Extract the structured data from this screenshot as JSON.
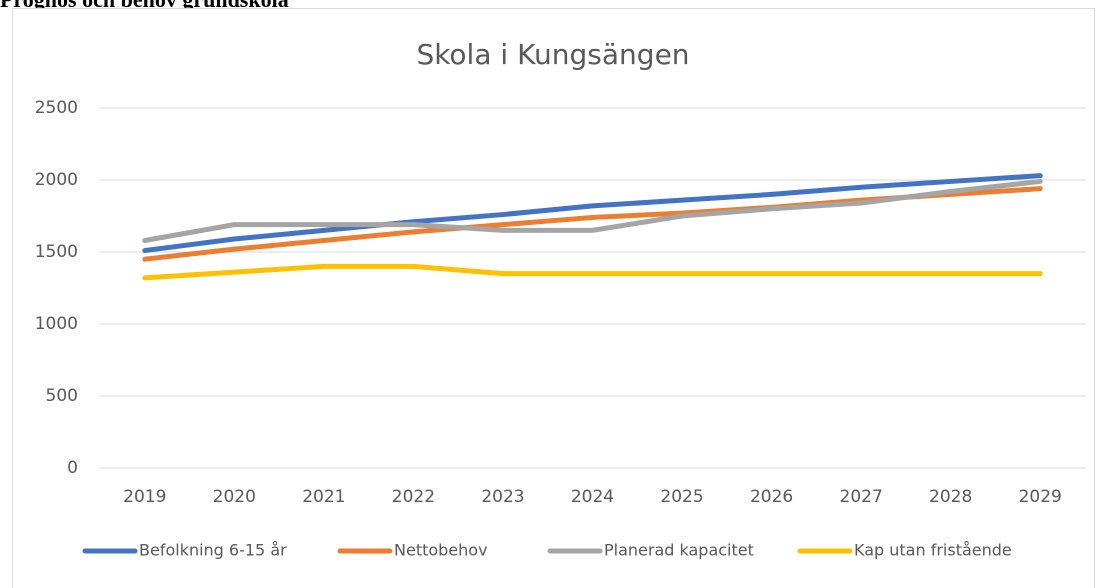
{
  "heading": "Prognos och behov grundskola",
  "chart_data": {
    "type": "line",
    "title": "Skola i Kungsängen",
    "categories": [
      "2019",
      "2020",
      "2021",
      "2022",
      "2023",
      "2024",
      "2025",
      "2026",
      "2027",
      "2028",
      "2029"
    ],
    "series": [
      {
        "name": "Befolkning 6-15 år",
        "color": "#4472c4",
        "values": [
          1510,
          1590,
          1650,
          1710,
          1760,
          1820,
          1860,
          1900,
          1950,
          1990,
          2030
        ]
      },
      {
        "name": "Nettobehov",
        "color": "#ed7d31",
        "values": [
          1450,
          1520,
          1580,
          1640,
          1690,
          1740,
          1770,
          1810,
          1860,
          1900,
          1940
        ]
      },
      {
        "name": "Planerad kapacitet",
        "color": "#a5a5a5",
        "values": [
          1580,
          1690,
          1690,
          1690,
          1650,
          1650,
          1750,
          1800,
          1840,
          1920,
          1990
        ]
      },
      {
        "name": "Kap utan fristående",
        "color": "#ffc000",
        "values": [
          1320,
          1360,
          1400,
          1400,
          1350,
          1350,
          1350,
          1350,
          1350,
          1350,
          1350
        ]
      }
    ],
    "ylim": [
      0,
      2500
    ],
    "yticks": [
      0,
      500,
      1000,
      1500,
      2000,
      2500
    ],
    "grid": true,
    "legend": "bottom"
  }
}
